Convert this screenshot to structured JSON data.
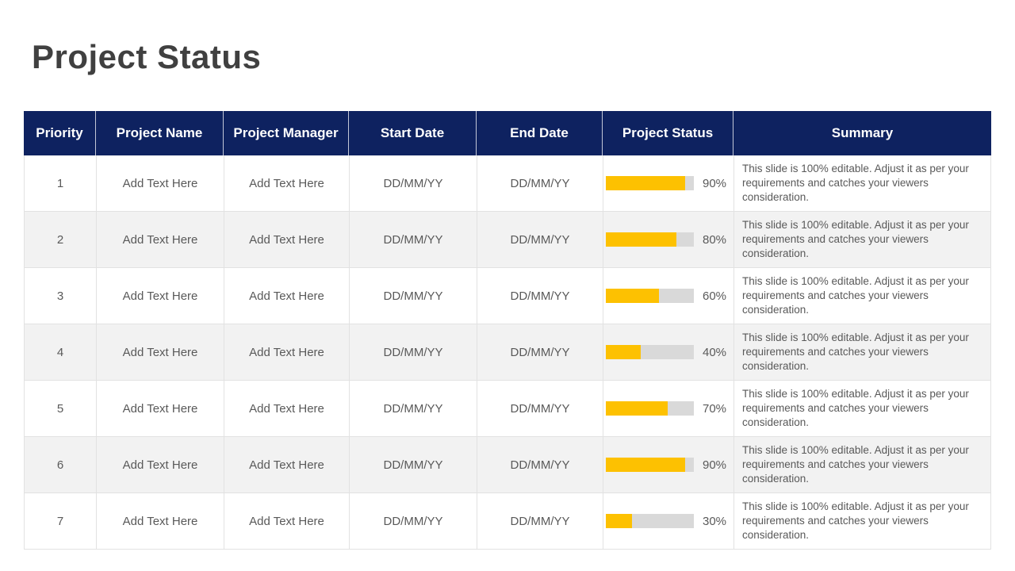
{
  "slide": {
    "title": "Project Status"
  },
  "colors": {
    "header_bg": "#0e2260",
    "header_text": "#ffffff",
    "bar_fill": "#fdc101",
    "bar_track": "#d9d9d9",
    "row_alt_bg": "#f2f2f2",
    "body_text": "#595959",
    "title_text": "#404040",
    "cell_border": "#e2e2e2"
  },
  "table": {
    "columns": [
      "Priority",
      "Project Name",
      "Project Manager",
      "Start Date",
      "End Date",
      "Project Status",
      "Summary"
    ],
    "rows": [
      {
        "priority": "1",
        "project_name": "Add Text Here",
        "project_manager": "Add Text Here",
        "start_date": "DD/MM/YY",
        "end_date": "DD/MM/YY",
        "status_percent": 90,
        "status_label": "90%",
        "summary": "This slide is 100% editable. Adjust it as per your requirements and catches your viewers consideration."
      },
      {
        "priority": "2",
        "project_name": "Add Text Here",
        "project_manager": "Add Text Here",
        "start_date": "DD/MM/YY",
        "end_date": "DD/MM/YY",
        "status_percent": 80,
        "status_label": "80%",
        "summary": "This slide is 100% editable. Adjust it as per your requirements and catches your viewers consideration."
      },
      {
        "priority": "3",
        "project_name": "Add Text Here",
        "project_manager": "Add Text Here",
        "start_date": "DD/MM/YY",
        "end_date": "DD/MM/YY",
        "status_percent": 60,
        "status_label": "60%",
        "summary": "This slide is 100% editable. Adjust it as per your requirements and catches your viewers consideration."
      },
      {
        "priority": "4",
        "project_name": "Add Text Here",
        "project_manager": "Add Text Here",
        "start_date": "DD/MM/YY",
        "end_date": "DD/MM/YY",
        "status_percent": 40,
        "status_label": "40%",
        "summary": "This slide is 100% editable. Adjust it as per your requirements and catches your viewers consideration."
      },
      {
        "priority": "5",
        "project_name": "Add Text Here",
        "project_manager": "Add Text Here",
        "start_date": "DD/MM/YY",
        "end_date": "DD/MM/YY",
        "status_percent": 70,
        "status_label": "70%",
        "summary": "This slide is 100% editable. Adjust it as per your requirements and catches your viewers consideration."
      },
      {
        "priority": "6",
        "project_name": "Add Text Here",
        "project_manager": "Add Text Here",
        "start_date": "DD/MM/YY",
        "end_date": "DD/MM/YY",
        "status_percent": 90,
        "status_label": "90%",
        "summary": "This slide is 100% editable. Adjust it as per your requirements and catches your viewers consideration."
      },
      {
        "priority": "7",
        "project_name": "Add Text Here",
        "project_manager": "Add Text Here",
        "start_date": "DD/MM/YY",
        "end_date": "DD/MM/YY",
        "status_percent": 30,
        "status_label": "30%",
        "summary": "This slide is 100% editable. Adjust it as per your requirements and catches your viewers consideration."
      }
    ]
  }
}
